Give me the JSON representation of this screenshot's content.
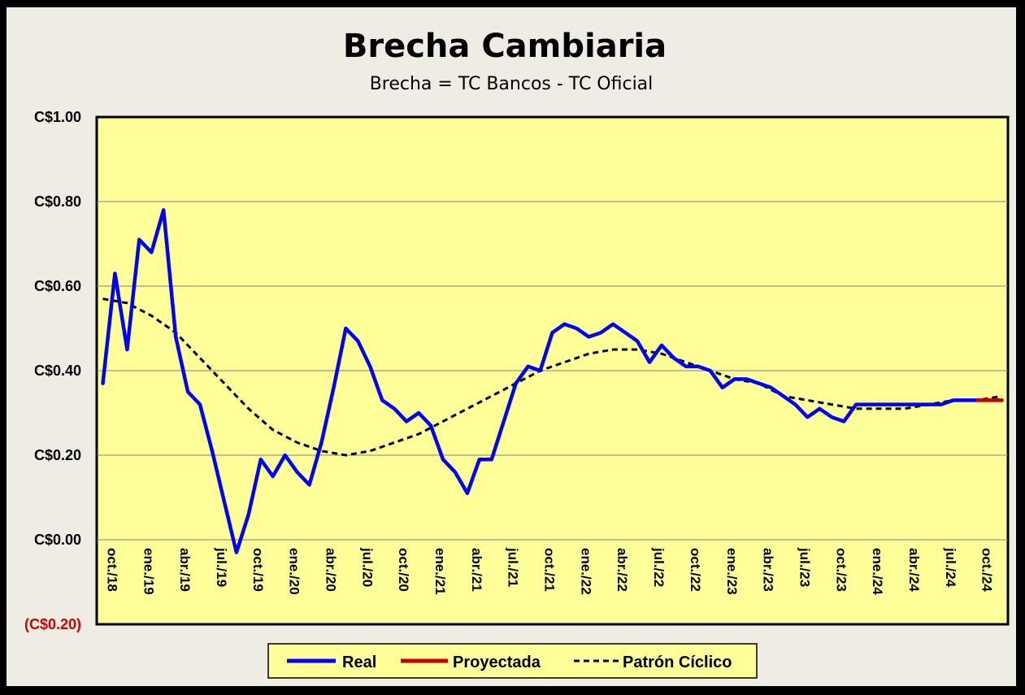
{
  "chart_data": {
    "type": "line",
    "title": "Brecha Cambiaria",
    "subtitle": "Brecha = TC Bancos - TC Oficial",
    "ylim": [
      -0.2,
      1.0
    ],
    "yticks": [
      {
        "value": 1.0,
        "label": "C$1.00"
      },
      {
        "value": 0.8,
        "label": "C$0.80"
      },
      {
        "value": 0.6,
        "label": "C$0.60"
      },
      {
        "value": 0.4,
        "label": "C$0.40"
      },
      {
        "value": 0.2,
        "label": "C$0.20"
      },
      {
        "value": 0.0,
        "label": "C$0.00"
      },
      {
        "value": -0.2,
        "label": "(C$0.20)"
      }
    ],
    "x_categories": [
      "oct./18",
      "ene./19",
      "abr./19",
      "jul./19",
      "oct./19",
      "ene./20",
      "abr./20",
      "jul./20",
      "oct./20",
      "ene./21",
      "abr./21",
      "jul./21",
      "oct./21",
      "ene./22",
      "abr./22",
      "jul./22",
      "oct./22",
      "ene./23",
      "abr./23",
      "jul./23",
      "oct./23",
      "ene./24",
      "abr./24",
      "jul./24",
      "oct./24"
    ],
    "grid": true,
    "legend_position": "bottom",
    "series": [
      {
        "name": "Real",
        "color": "#0000ff",
        "points": [
          [
            1,
            0.37
          ],
          [
            2,
            0.63
          ],
          [
            3,
            0.45
          ],
          [
            4,
            0.71
          ],
          [
            5,
            0.68
          ],
          [
            6,
            0.78
          ],
          [
            7,
            0.48
          ],
          [
            8,
            0.35
          ],
          [
            9,
            0.32
          ],
          [
            10,
            0.21
          ],
          [
            11,
            0.09
          ],
          [
            12,
            -0.03
          ],
          [
            13,
            0.06
          ],
          [
            14,
            0.19
          ],
          [
            15,
            0.15
          ],
          [
            16,
            0.2
          ],
          [
            17,
            0.16
          ],
          [
            18,
            0.13
          ],
          [
            19,
            0.23
          ],
          [
            20,
            0.36
          ],
          [
            21,
            0.5
          ],
          [
            22,
            0.47
          ],
          [
            23,
            0.41
          ],
          [
            24,
            0.33
          ],
          [
            25,
            0.31
          ],
          [
            26,
            0.28
          ],
          [
            27,
            0.3
          ],
          [
            28,
            0.27
          ],
          [
            29,
            0.19
          ],
          [
            30,
            0.16
          ],
          [
            31,
            0.11
          ],
          [
            32,
            0.19
          ],
          [
            33,
            0.19
          ],
          [
            34,
            0.28
          ],
          [
            35,
            0.37
          ],
          [
            36,
            0.41
          ],
          [
            37,
            0.4
          ],
          [
            38,
            0.49
          ],
          [
            39,
            0.51
          ],
          [
            40,
            0.5
          ],
          [
            41,
            0.48
          ],
          [
            42,
            0.49
          ],
          [
            43,
            0.51
          ],
          [
            44,
            0.49
          ],
          [
            45,
            0.47
          ],
          [
            46,
            0.42
          ],
          [
            47,
            0.46
          ],
          [
            48,
            0.43
          ],
          [
            49,
            0.41
          ],
          [
            50,
            0.41
          ],
          [
            51,
            0.4
          ],
          [
            52,
            0.36
          ],
          [
            53,
            0.38
          ],
          [
            54,
            0.38
          ],
          [
            55,
            0.37
          ],
          [
            56,
            0.36
          ],
          [
            57,
            0.34
          ],
          [
            58,
            0.32
          ],
          [
            59,
            0.29
          ],
          [
            60,
            0.31
          ],
          [
            61,
            0.29
          ],
          [
            62,
            0.28
          ],
          [
            63,
            0.32
          ],
          [
            64,
            0.32
          ],
          [
            65,
            0.32
          ],
          [
            66,
            0.32
          ],
          [
            67,
            0.32
          ],
          [
            68,
            0.32
          ],
          [
            69,
            0.32
          ],
          [
            70,
            0.32
          ],
          [
            71,
            0.33
          ],
          [
            72,
            0.33
          ],
          [
            73,
            0.33
          ]
        ]
      },
      {
        "name": "Proyectada",
        "color": "#c00000",
        "points": [
          [
            73,
            0.33
          ],
          [
            74,
            0.33
          ],
          [
            75,
            0.33
          ]
        ]
      },
      {
        "name": "Patrón Cíclico",
        "color": "#000000",
        "points": [
          [
            1,
            0.57
          ],
          [
            3,
            0.56
          ],
          [
            5,
            0.53
          ],
          [
            7,
            0.49
          ],
          [
            9,
            0.43
          ],
          [
            11,
            0.37
          ],
          [
            13,
            0.31
          ],
          [
            15,
            0.26
          ],
          [
            17,
            0.23
          ],
          [
            19,
            0.21
          ],
          [
            21,
            0.2
          ],
          [
            23,
            0.21
          ],
          [
            25,
            0.23
          ],
          [
            27,
            0.25
          ],
          [
            29,
            0.28
          ],
          [
            31,
            0.31
          ],
          [
            33,
            0.34
          ],
          [
            35,
            0.37
          ],
          [
            37,
            0.4
          ],
          [
            39,
            0.42
          ],
          [
            41,
            0.44
          ],
          [
            43,
            0.45
          ],
          [
            45,
            0.45
          ],
          [
            47,
            0.44
          ],
          [
            49,
            0.42
          ],
          [
            51,
            0.4
          ],
          [
            53,
            0.38
          ],
          [
            55,
            0.37
          ],
          [
            57,
            0.34
          ],
          [
            59,
            0.33
          ],
          [
            61,
            0.32
          ],
          [
            63,
            0.31
          ],
          [
            65,
            0.31
          ],
          [
            67,
            0.31
          ],
          [
            69,
            0.32
          ],
          [
            71,
            0.33
          ],
          [
            73,
            0.33
          ],
          [
            75,
            0.34
          ]
        ]
      }
    ]
  }
}
